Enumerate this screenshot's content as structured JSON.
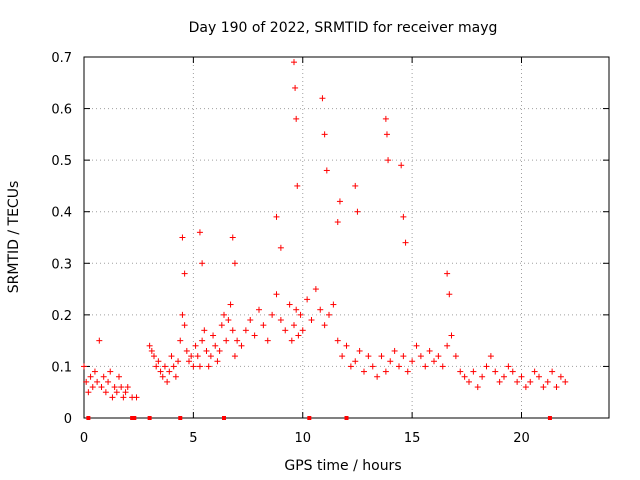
{
  "chart_data": {
    "type": "scatter",
    "title": "Day 190 of 2022, SRMTID for receiver mayg",
    "xlabel": "GPS time / hours",
    "ylabel": "SRMTID / TECUs",
    "xlim": [
      0,
      24
    ],
    "ylim": [
      0,
      0.7
    ],
    "xticks": [
      0,
      5,
      10,
      15,
      20
    ],
    "yticks": [
      0,
      0.1,
      0.2,
      0.3,
      0.4,
      0.5,
      0.6,
      0.7
    ],
    "ytick_labels": [
      "0",
      "0.1",
      "0.2",
      "0.3",
      "0.4",
      "0.5",
      "0.6",
      "0.7"
    ],
    "grid": true,
    "marker": "+",
    "color": "#ff0000",
    "series": [
      {
        "name": "SRMTID",
        "x": [
          0.0,
          0.1,
          0.2,
          0.3,
          0.4,
          0.5,
          0.6,
          0.7,
          0.8,
          0.9,
          1.0,
          1.1,
          1.2,
          1.3,
          1.4,
          1.5,
          1.6,
          1.7,
          1.8,
          1.9,
          2.0,
          2.2,
          2.4,
          3.0,
          3.1,
          3.2,
          3.3,
          3.4,
          3.5,
          3.6,
          3.7,
          3.8,
          3.9,
          4.0,
          4.1,
          4.2,
          4.3,
          4.4,
          4.5,
          4.6,
          4.7,
          4.8,
          4.9,
          5.0,
          5.1,
          5.2,
          5.3,
          5.4,
          5.5,
          5.6,
          5.7,
          5.8,
          5.9,
          6.0,
          6.1,
          6.2,
          6.3,
          6.4,
          6.5,
          6.6,
          6.7,
          6.8,
          6.9,
          7.0,
          7.2,
          7.4,
          7.6,
          7.8,
          8.0,
          8.2,
          8.4,
          8.6,
          8.8,
          9.0,
          9.2,
          9.4,
          9.5,
          9.6,
          9.7,
          9.8,
          9.9,
          10.0,
          10.2,
          10.4,
          10.6,
          10.8,
          11.0,
          11.2,
          11.4,
          11.6,
          11.8,
          12.0,
          12.2,
          12.4,
          12.6,
          12.8,
          13.0,
          13.2,
          13.4,
          13.6,
          13.8,
          14.0,
          14.2,
          14.4,
          14.6,
          14.8,
          15.0,
          15.2,
          15.4,
          15.6,
          15.8,
          16.0,
          16.2,
          16.4,
          16.6,
          16.8,
          17.0,
          17.2,
          17.4,
          17.6,
          17.8,
          18.0,
          18.2,
          18.4,
          18.6,
          18.8,
          19.0,
          19.2,
          19.4,
          19.6,
          19.8,
          20.0,
          20.2,
          20.4,
          20.6,
          20.8,
          21.0,
          21.2,
          21.4,
          21.6,
          21.8,
          22.0,
          4.5,
          4.6,
          5.3,
          5.4,
          6.8,
          6.9,
          8.8,
          9.0,
          9.6,
          9.65,
          9.7,
          9.75,
          10.9,
          11.0,
          11.1,
          11.6,
          11.7,
          12.4,
          12.5,
          13.8,
          13.85,
          13.9,
          14.5,
          14.6,
          14.7,
          16.6,
          16.7
        ],
        "y": [
          0.1,
          0.07,
          0.05,
          0.08,
          0.06,
          0.09,
          0.07,
          0.15,
          0.06,
          0.08,
          0.05,
          0.07,
          0.09,
          0.04,
          0.06,
          0.05,
          0.08,
          0.06,
          0.04,
          0.05,
          0.06,
          0.04,
          0.04,
          0.14,
          0.13,
          0.12,
          0.1,
          0.11,
          0.09,
          0.08,
          0.1,
          0.07,
          0.09,
          0.12,
          0.1,
          0.08,
          0.11,
          0.15,
          0.2,
          0.18,
          0.13,
          0.11,
          0.12,
          0.1,
          0.14,
          0.12,
          0.1,
          0.15,
          0.17,
          0.13,
          0.1,
          0.12,
          0.16,
          0.14,
          0.11,
          0.13,
          0.18,
          0.2,
          0.15,
          0.19,
          0.22,
          0.17,
          0.12,
          0.15,
          0.14,
          0.17,
          0.19,
          0.16,
          0.21,
          0.18,
          0.15,
          0.2,
          0.24,
          0.19,
          0.17,
          0.22,
          0.15,
          0.18,
          0.21,
          0.16,
          0.2,
          0.17,
          0.23,
          0.19,
          0.25,
          0.21,
          0.18,
          0.2,
          0.22,
          0.15,
          0.12,
          0.14,
          0.1,
          0.11,
          0.13,
          0.09,
          0.12,
          0.1,
          0.08,
          0.12,
          0.09,
          0.11,
          0.13,
          0.1,
          0.12,
          0.09,
          0.11,
          0.14,
          0.12,
          0.1,
          0.13,
          0.11,
          0.12,
          0.1,
          0.14,
          0.16,
          0.12,
          0.09,
          0.08,
          0.07,
          0.09,
          0.06,
          0.08,
          0.1,
          0.12,
          0.09,
          0.07,
          0.08,
          0.1,
          0.09,
          0.07,
          0.08,
          0.06,
          0.07,
          0.09,
          0.08,
          0.06,
          0.07,
          0.09,
          0.06,
          0.08,
          0.07,
          0.35,
          0.28,
          0.36,
          0.3,
          0.35,
          0.3,
          0.39,
          0.33,
          0.69,
          0.64,
          0.58,
          0.45,
          0.62,
          0.55,
          0.48,
          0.38,
          0.42,
          0.45,
          0.4,
          0.58,
          0.55,
          0.5,
          0.49,
          0.39,
          0.34,
          0.28,
          0.24
        ]
      }
    ],
    "bottom_markers_x": [
      0.2,
      2.2,
      2.3,
      3.0,
      4.4,
      6.4,
      10.3,
      12.0,
      21.3
    ]
  }
}
